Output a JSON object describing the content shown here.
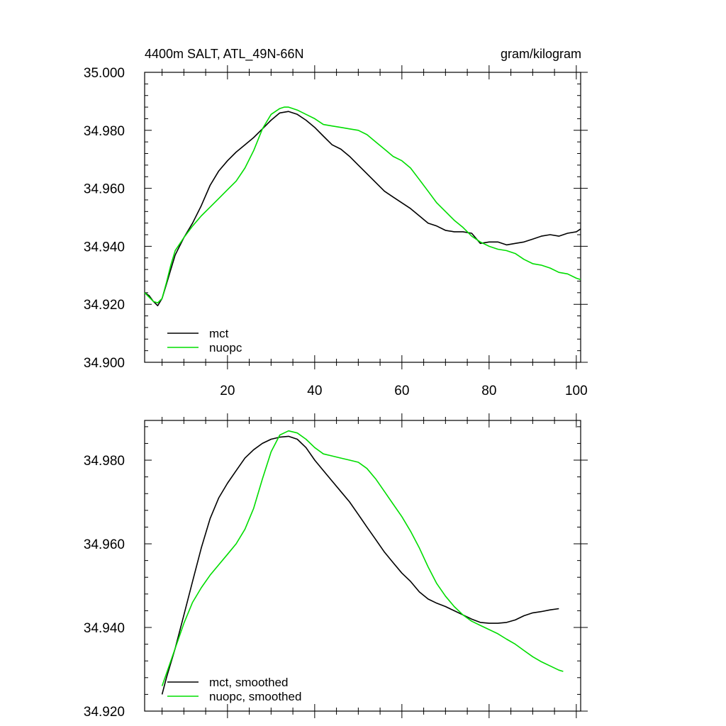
{
  "chart_data": [
    {
      "type": "line",
      "title_left": "4400m SALT, ATL_49N-66N",
      "title_right": "gram/kilogram",
      "xlabel": "",
      "ylabel": "",
      "xlim": [
        1,
        101
      ],
      "ylim": [
        34.9,
        35.0
      ],
      "x_ticks": [
        20,
        40,
        60,
        80,
        100
      ],
      "x_tick_labels": [
        "20",
        "40",
        "60",
        "80",
        "100"
      ],
      "y_ticks": [
        34.9,
        34.92,
        34.94,
        34.96,
        34.98,
        35.0
      ],
      "y_tick_labels": [
        "34.900",
        "34.920",
        "34.940",
        "34.960",
        "34.980",
        "35.000"
      ],
      "legend_position": "bottom-left",
      "series": [
        {
          "name": "mct",
          "color": "#000000",
          "points": [
            [
              1,
              34.924
            ],
            [
              2,
              34.923
            ],
            [
              3,
              34.921
            ],
            [
              4,
              34.9195
            ],
            [
              5,
              34.922
            ],
            [
              6,
              34.927
            ],
            [
              7,
              34.932
            ],
            [
              8,
              34.937
            ],
            [
              9,
              34.94
            ],
            [
              10,
              34.943
            ],
            [
              12,
              34.948
            ],
            [
              14,
              34.954
            ],
            [
              16,
              34.961
            ],
            [
              18,
              34.966
            ],
            [
              20,
              34.9695
            ],
            [
              22,
              34.9725
            ],
            [
              24,
              34.975
            ],
            [
              26,
              34.9775
            ],
            [
              28,
              34.9805
            ],
            [
              30,
              34.9835
            ],
            [
              32,
              34.986
            ],
            [
              34,
              34.9865
            ],
            [
              36,
              34.9855
            ],
            [
              38,
              34.9835
            ],
            [
              40,
              34.981
            ],
            [
              42,
              34.978
            ],
            [
              44,
              34.975
            ],
            [
              46,
              34.9735
            ],
            [
              48,
              34.971
            ],
            [
              50,
              34.968
            ],
            [
              52,
              34.965
            ],
            [
              54,
              34.962
            ],
            [
              56,
              34.959
            ],
            [
              58,
              34.957
            ],
            [
              60,
              34.955
            ],
            [
              62,
              34.953
            ],
            [
              64,
              34.9505
            ],
            [
              66,
              34.948
            ],
            [
              68,
              34.947
            ],
            [
              70,
              34.9455
            ],
            [
              72,
              34.945
            ],
            [
              74,
              34.945
            ],
            [
              76,
              34.9445
            ],
            [
              78,
              34.941
            ],
            [
              80,
              34.9415
            ],
            [
              82,
              34.9415
            ],
            [
              84,
              34.9405
            ],
            [
              86,
              34.941
            ],
            [
              88,
              34.9415
            ],
            [
              90,
              34.9425
            ],
            [
              92,
              34.9435
            ],
            [
              94,
              34.944
            ],
            [
              96,
              34.9435
            ],
            [
              98,
              34.9445
            ],
            [
              100,
              34.945
            ],
            [
              101,
              34.946
            ]
          ]
        },
        {
          "name": "nuopc",
          "color": "#00dd00",
          "points": [
            [
              1,
              34.924
            ],
            [
              2,
              34.9225
            ],
            [
              3,
              34.921
            ],
            [
              4,
              34.9205
            ],
            [
              5,
              34.922
            ],
            [
              6,
              34.9275
            ],
            [
              7,
              34.9335
            ],
            [
              8,
              34.9385
            ],
            [
              10,
              34.943
            ],
            [
              12,
              34.947
            ],
            [
              14,
              34.9505
            ],
            [
              16,
              34.9535
            ],
            [
              18,
              34.9565
            ],
            [
              20,
              34.9595
            ],
            [
              22,
              34.9625
            ],
            [
              24,
              34.967
            ],
            [
              26,
              34.973
            ],
            [
              28,
              34.9805
            ],
            [
              30,
              34.9855
            ],
            [
              32,
              34.9875
            ],
            [
              33,
              34.988
            ],
            [
              34,
              34.988
            ],
            [
              36,
              34.987
            ],
            [
              38,
              34.9855
            ],
            [
              40,
              34.984
            ],
            [
              42,
              34.982
            ],
            [
              44,
              34.9815
            ],
            [
              46,
              34.981
            ],
            [
              48,
              34.9805
            ],
            [
              50,
              34.98
            ],
            [
              52,
              34.9785
            ],
            [
              54,
              34.976
            ],
            [
              56,
              34.9735
            ],
            [
              58,
              34.971
            ],
            [
              60,
              34.9695
            ],
            [
              62,
              34.967
            ],
            [
              64,
              34.963
            ],
            [
              66,
              34.959
            ],
            [
              68,
              34.955
            ],
            [
              70,
              34.952
            ],
            [
              72,
              34.949
            ],
            [
              74,
              34.9465
            ],
            [
              76,
              34.9435
            ],
            [
              78,
              34.9415
            ],
            [
              80,
              34.94
            ],
            [
              82,
              34.939
            ],
            [
              84,
              34.9385
            ],
            [
              86,
              34.9375
            ],
            [
              88,
              34.9355
            ],
            [
              90,
              34.934
            ],
            [
              92,
              34.9335
            ],
            [
              94,
              34.9325
            ],
            [
              96,
              34.931
            ],
            [
              98,
              34.9305
            ],
            [
              100,
              34.929
            ],
            [
              101,
              34.9285
            ]
          ]
        }
      ]
    },
    {
      "type": "line",
      "xlabel": "",
      "ylabel": "",
      "xlim": [
        1,
        101
      ],
      "ylim": [
        34.92,
        34.9895
      ],
      "x_ticks": [
        20,
        40,
        60,
        80,
        100
      ],
      "y_ticks": [
        34.92,
        34.94,
        34.96,
        34.98
      ],
      "y_tick_labels": [
        "34.920",
        "34.940",
        "34.960",
        "34.980"
      ],
      "legend_position": "bottom-left",
      "series": [
        {
          "name": "mct, smoothed",
          "color": "#000000",
          "points": [
            [
              5,
              34.924
            ],
            [
              6,
              34.928
            ],
            [
              8,
              34.935
            ],
            [
              10,
              34.943
            ],
            [
              12,
              34.951
            ],
            [
              14,
              34.959
            ],
            [
              16,
              34.966
            ],
            [
              18,
              34.971
            ],
            [
              20,
              34.9745
            ],
            [
              22,
              34.9775
            ],
            [
              24,
              34.9805
            ],
            [
              26,
              34.9825
            ],
            [
              28,
              34.984
            ],
            [
              30,
              34.985
            ],
            [
              32,
              34.9855
            ],
            [
              34,
              34.9857
            ],
            [
              36,
              34.985
            ],
            [
              38,
              34.983
            ],
            [
              40,
              34.98
            ],
            [
              42,
              34.9775
            ],
            [
              44,
              34.975
            ],
            [
              46,
              34.9725
            ],
            [
              48,
              34.97
            ],
            [
              50,
              34.967
            ],
            [
              52,
              34.964
            ],
            [
              54,
              34.961
            ],
            [
              56,
              34.958
            ],
            [
              58,
              34.9555
            ],
            [
              60,
              34.953
            ],
            [
              62,
              34.951
            ],
            [
              64,
              34.9485
            ],
            [
              66,
              34.9468
            ],
            [
              68,
              34.9458
            ],
            [
              70,
              34.945
            ],
            [
              72,
              34.944
            ],
            [
              74,
              34.943
            ],
            [
              76,
              34.942
            ],
            [
              78,
              34.9412
            ],
            [
              80,
              34.941
            ],
            [
              82,
              34.941
            ],
            [
              84,
              34.9412
            ],
            [
              86,
              34.9418
            ],
            [
              88,
              34.9428
            ],
            [
              90,
              34.9435
            ],
            [
              92,
              34.9438
            ],
            [
              94,
              34.9442
            ],
            [
              96,
              34.9445
            ]
          ]
        },
        {
          "name": "nuopc, smoothed",
          "color": "#00dd00",
          "points": [
            [
              5,
              34.926
            ],
            [
              6,
              34.929
            ],
            [
              8,
              34.935
            ],
            [
              10,
              34.941
            ],
            [
              12,
              34.946
            ],
            [
              14,
              34.9495
            ],
            [
              16,
              34.9525
            ],
            [
              18,
              34.955
            ],
            [
              20,
              34.9575
            ],
            [
              22,
              34.96
            ],
            [
              24,
              34.9635
            ],
            [
              26,
              34.9685
            ],
            [
              28,
              34.9755
            ],
            [
              30,
              34.982
            ],
            [
              32,
              34.986
            ],
            [
              34,
              34.987
            ],
            [
              36,
              34.9865
            ],
            [
              38,
              34.985
            ],
            [
              40,
              34.983
            ],
            [
              42,
              34.9815
            ],
            [
              44,
              34.981
            ],
            [
              46,
              34.9805
            ],
            [
              48,
              34.98
            ],
            [
              50,
              34.9795
            ],
            [
              52,
              34.978
            ],
            [
              54,
              34.9755
            ],
            [
              56,
              34.9725
            ],
            [
              58,
              34.9695
            ],
            [
              60,
              34.9665
            ],
            [
              62,
              34.963
            ],
            [
              64,
              34.959
            ],
            [
              66,
              34.9545
            ],
            [
              68,
              34.9505
            ],
            [
              70,
              34.9475
            ],
            [
              72,
              34.945
            ],
            [
              74,
              34.943
            ],
            [
              76,
              34.9415
            ],
            [
              78,
              34.9405
            ],
            [
              80,
              34.9395
            ],
            [
              82,
              34.9385
            ],
            [
              84,
              34.9372
            ],
            [
              86,
              34.936
            ],
            [
              88,
              34.9345
            ],
            [
              90,
              34.933
            ],
            [
              92,
              34.9318
            ],
            [
              94,
              34.9308
            ],
            [
              96,
              34.9298
            ],
            [
              97,
              34.9295
            ]
          ]
        }
      ]
    }
  ]
}
